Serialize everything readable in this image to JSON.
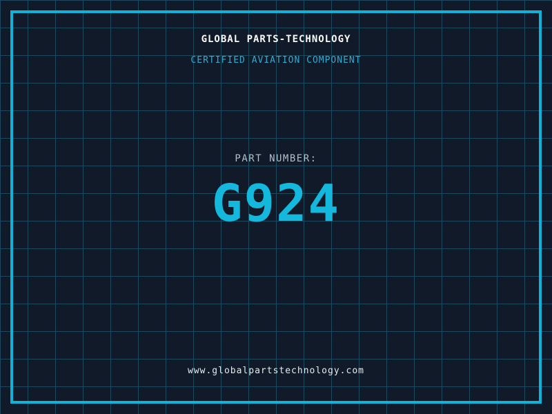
{
  "placard": {
    "company_name": "GLOBAL PARTS-TECHNOLOGY",
    "tagline": "CERTIFIED AVIATION COMPONENT",
    "part_label": "PART NUMBER:",
    "part_number": "G924",
    "website": "www.globalpartstechnology.com"
  },
  "colors": {
    "background": "#101a29",
    "grid_line": "#1d4a5f",
    "frame": "#10b3d8",
    "title": "#fafafa",
    "tagline": "#36a9cf",
    "part_label": "#b4bfc8",
    "part_number": "#15b8dd",
    "website": "#e4ebf0"
  }
}
